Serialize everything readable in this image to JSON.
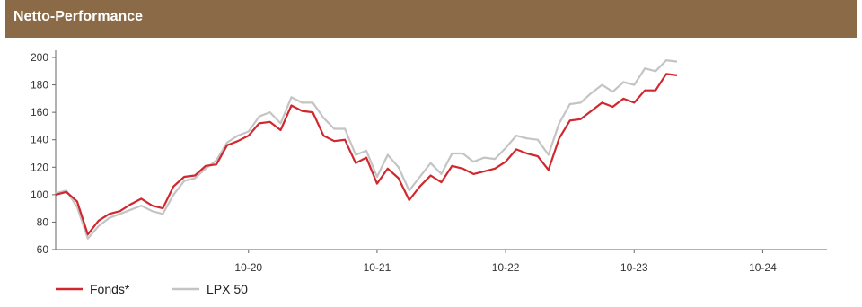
{
  "header": {
    "title": "Netto-Performance"
  },
  "chart_data": {
    "type": "line",
    "title": "",
    "xlabel": "",
    "ylabel": "",
    "ylim": [
      60,
      200
    ],
    "yticks": [
      60,
      80,
      100,
      120,
      140,
      160,
      180,
      200
    ],
    "xticks": [
      {
        "label": "10-20",
        "index": 18
      },
      {
        "label": "10-21",
        "index": 30
      },
      {
        "label": "10-22",
        "index": 42
      },
      {
        "label": "10-23",
        "index": 54
      },
      {
        "label": "10-24",
        "index": 66
      }
    ],
    "grid": false,
    "legend": "bottom-left",
    "series": [
      {
        "name": "Fonds*",
        "color": "#d0282e",
        "values": [
          100,
          102,
          95,
          71,
          81,
          86,
          88,
          93,
          97,
          92,
          90,
          106,
          113,
          114,
          121,
          122,
          136,
          139,
          143,
          152,
          153,
          147,
          165,
          161,
          160,
          143,
          139,
          140,
          123,
          127,
          108,
          119,
          112,
          96,
          106,
          114,
          109,
          121,
          119,
          115,
          117,
          119,
          124,
          133,
          130,
          128,
          118,
          141,
          154,
          155,
          161,
          167,
          164,
          170,
          167,
          176,
          176,
          188,
          187
        ]
      },
      {
        "name": "LPX 50",
        "color": "#c4c4c4",
        "values": [
          101,
          103,
          91,
          68,
          77,
          83,
          86,
          89,
          92,
          88,
          86,
          100,
          110,
          112,
          119,
          125,
          138,
          143,
          146,
          157,
          160,
          152,
          171,
          167,
          167,
          156,
          148,
          148,
          129,
          132,
          113,
          129,
          120,
          103,
          113,
          123,
          115,
          130,
          130,
          124,
          127,
          126,
          134,
          143,
          141,
          140,
          129,
          152,
          166,
          167,
          174,
          180,
          175,
          182,
          180,
          192,
          190,
          198,
          197
        ]
      }
    ]
  }
}
